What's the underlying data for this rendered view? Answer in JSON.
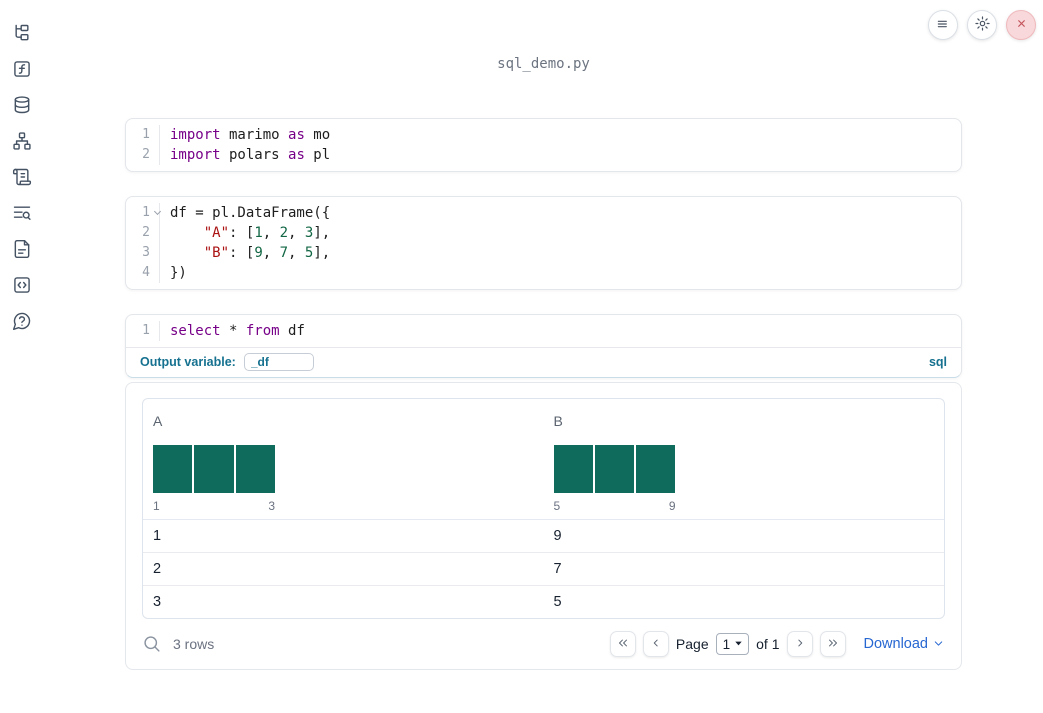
{
  "window": {
    "title": "sql_demo.py"
  },
  "topbar": {
    "icons": [
      "hamburger-menu-icon",
      "gear-icon",
      "close-x-icon"
    ]
  },
  "sidebar": {
    "icons": [
      "folder-tree-icon",
      "function-square-icon",
      "database-icon",
      "dependency-graph-icon",
      "scroll-icon",
      "list-search-icon",
      "document-icon",
      "code-snippets-icon",
      "help-bubble-icon"
    ]
  },
  "cells": [
    {
      "type": "python",
      "lines": [
        {
          "n": "1",
          "tokens": [
            [
              "kw",
              "import"
            ],
            [
              "pl",
              " marimo "
            ],
            [
              "kw",
              "as"
            ],
            [
              "pl",
              " mo"
            ]
          ]
        },
        {
          "n": "2",
          "tokens": [
            [
              "kw",
              "import"
            ],
            [
              "pl",
              " polars "
            ],
            [
              "kw",
              "as"
            ],
            [
              "pl",
              " pl"
            ]
          ]
        }
      ]
    },
    {
      "type": "python",
      "lines": [
        {
          "n": "1",
          "fold": true,
          "tokens": [
            [
              "pl",
              "df = pl.DataFrame({"
            ]
          ]
        },
        {
          "n": "2",
          "tokens": [
            [
              "pl",
              "    "
            ],
            [
              "str",
              "\"A\""
            ],
            [
              "pl",
              ": ["
            ],
            [
              "num",
              "1"
            ],
            [
              "pl",
              ", "
            ],
            [
              "num",
              "2"
            ],
            [
              "pl",
              ", "
            ],
            [
              "num",
              "3"
            ],
            [
              "pl",
              "],"
            ]
          ]
        },
        {
          "n": "3",
          "tokens": [
            [
              "pl",
              "    "
            ],
            [
              "str",
              "\"B\""
            ],
            [
              "pl",
              ": ["
            ],
            [
              "num",
              "9"
            ],
            [
              "pl",
              ", "
            ],
            [
              "num",
              "7"
            ],
            [
              "pl",
              ", "
            ],
            [
              "num",
              "5"
            ],
            [
              "pl",
              "],"
            ]
          ]
        },
        {
          "n": "4",
          "tokens": [
            [
              "pl",
              "})"
            ]
          ]
        }
      ]
    },
    {
      "type": "sql",
      "lines": [
        {
          "n": "1",
          "tokens": [
            [
              "kw",
              "select"
            ],
            [
              "pl",
              " * "
            ],
            [
              "kw",
              "from"
            ],
            [
              "pl",
              " df"
            ]
          ]
        }
      ]
    }
  ],
  "sql_cell": {
    "output_variable_label": "Output variable:",
    "output_variable_value": "_df",
    "language_badge": "sql"
  },
  "table": {
    "columns": [
      {
        "label": "A",
        "histogram": {
          "type": "bar",
          "bins": [
            1,
            2,
            3
          ],
          "counts": [
            1,
            1,
            1
          ],
          "min_label": "1",
          "max_label": "3",
          "bar_color": "#0f6b5c"
        }
      },
      {
        "label": "B",
        "histogram": {
          "type": "bar",
          "bins": [
            5,
            7,
            9
          ],
          "counts": [
            1,
            1,
            1
          ],
          "min_label": "5",
          "max_label": "9",
          "bar_color": "#0f6b5c"
        }
      }
    ],
    "rows": [
      [
        "1",
        "9"
      ],
      [
        "2",
        "7"
      ],
      [
        "3",
        "5"
      ]
    ],
    "footer": {
      "row_count": "3 rows",
      "page_label": "Page",
      "page_value": "1",
      "of_label": "of 1",
      "download_label": "Download"
    }
  }
}
